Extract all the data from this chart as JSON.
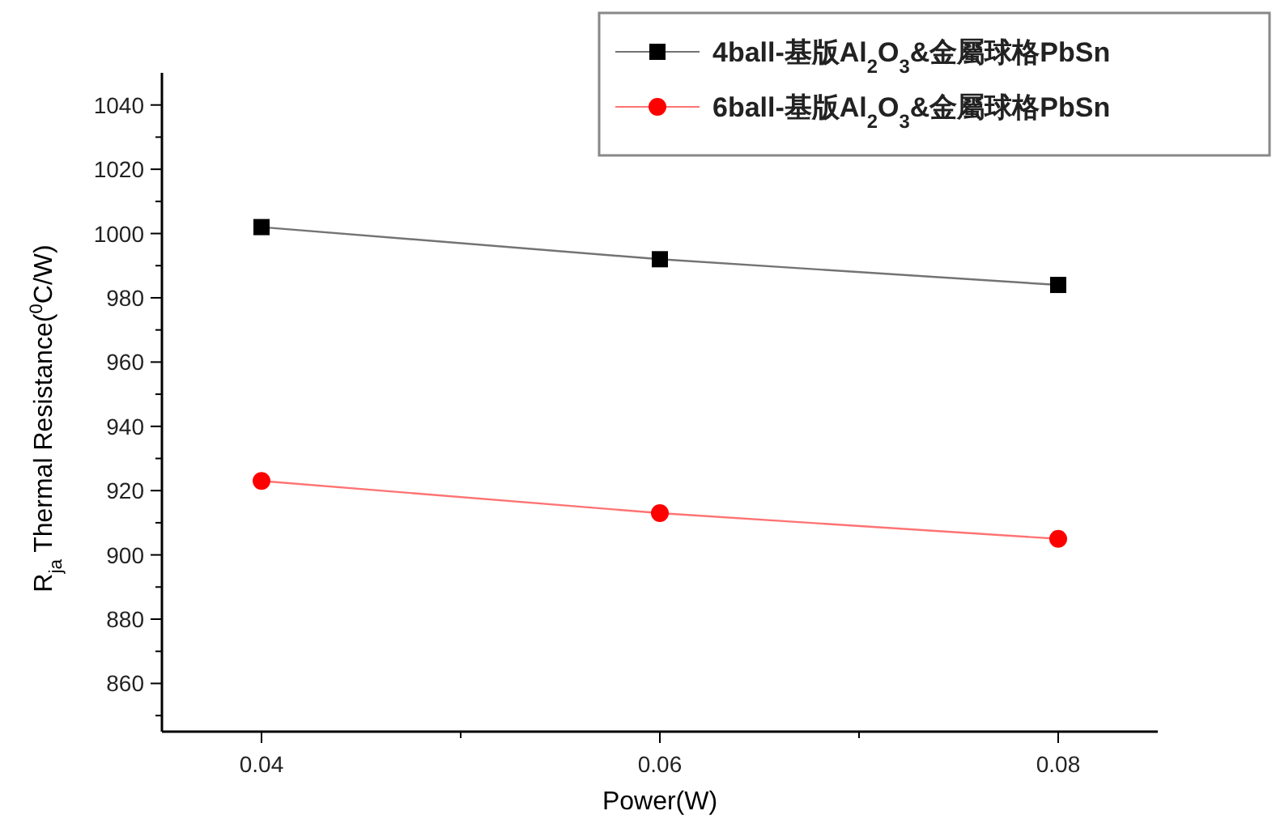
{
  "chart_data": {
    "type": "line",
    "xlabel": "Power(W)",
    "ylabel": "R$_{ja}$ Thermal Resistance($^{0}$C/W)",
    "x": [
      0.04,
      0.06,
      0.08
    ],
    "series": [
      {
        "name": "4ball-基版Al$_{2}$O$_{3}$&金屬球格PbSn",
        "color": "#000000",
        "marker": "square",
        "values": [
          1002,
          992,
          984
        ]
      },
      {
        "name": "6ball-基版Al$_{2}$O$_{3}$&金屬球格PbSn",
        "color": "#ff0000",
        "marker": "circle",
        "values": [
          923,
          913,
          905
        ]
      }
    ],
    "xlim": [
      0.035,
      0.085
    ],
    "ylim": [
      845,
      1050
    ],
    "xticks": [
      0.04,
      {
        "value": 0.05,
        "label": null
      },
      0.06,
      {
        "value": 0.07,
        "label": null
      },
      0.08
    ],
    "yticks": [
      {
        "value": 850,
        "label": null
      },
      860,
      {
        "value": 870,
        "label": null
      },
      880,
      {
        "value": 890,
        "label": null
      },
      900,
      {
        "value": 910,
        "label": null
      },
      920,
      {
        "value": 930,
        "label": null
      },
      940,
      {
        "value": 950,
        "label": null
      },
      960,
      {
        "value": 970,
        "label": null
      },
      980,
      {
        "value": 990,
        "label": null
      },
      1000,
      {
        "value": 1010,
        "label": null
      },
      1020,
      {
        "value": 1030,
        "label": null
      },
      1040
    ],
    "grid": false,
    "legend": "top right",
    "line_style": "solid"
  }
}
